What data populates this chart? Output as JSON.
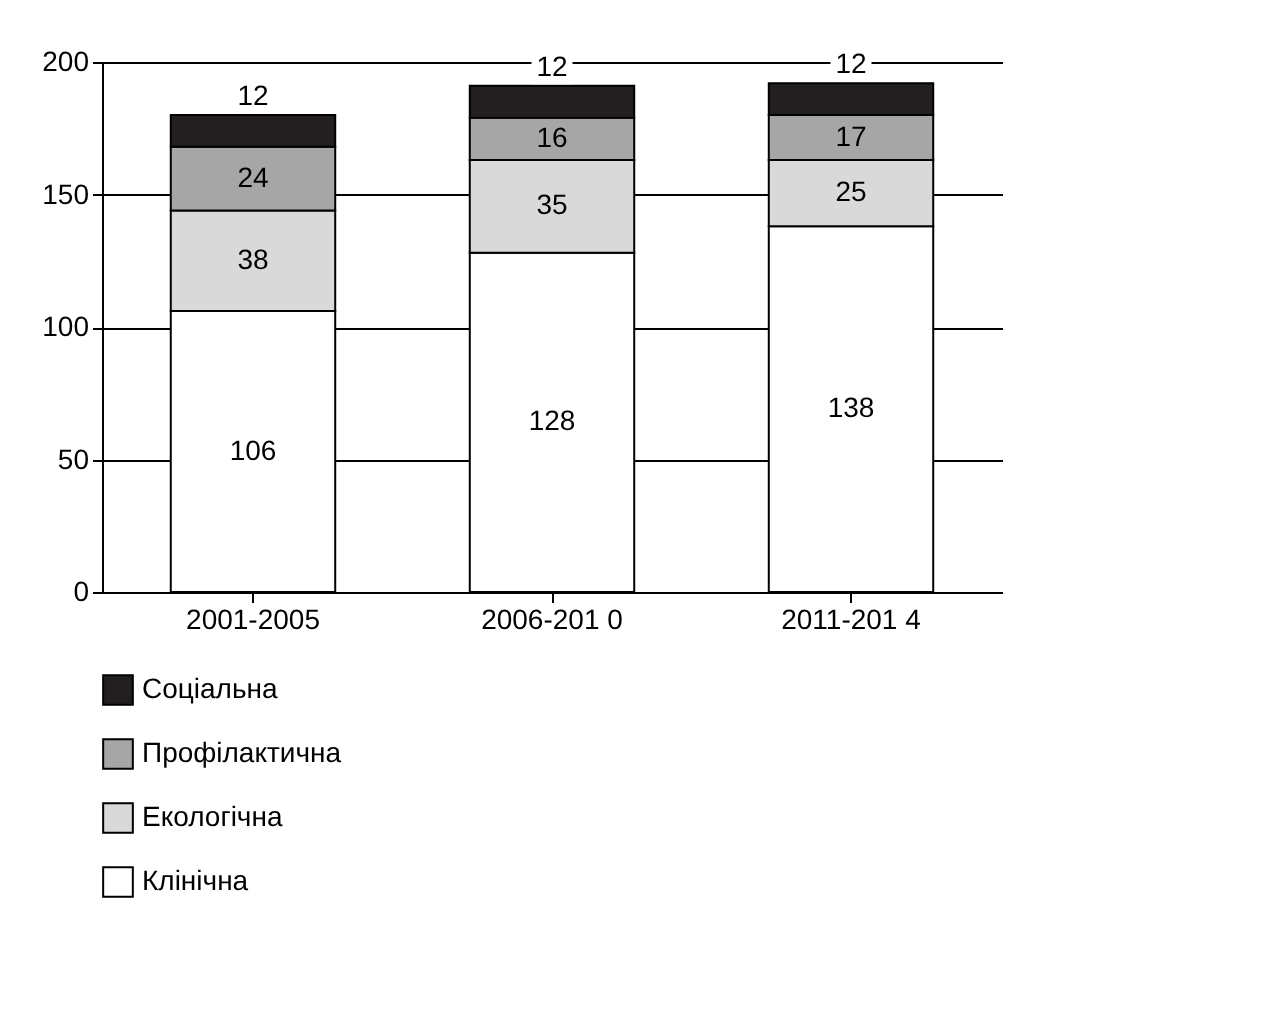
{
  "chart_data": {
    "type": "bar",
    "stacked": true,
    "categories": [
      "2001-2005",
      "2006-201 0",
      "2011-201 4"
    ],
    "series": [
      {
        "name": "Клінічна",
        "color": "#ffffff",
        "values": [
          106,
          128,
          138
        ]
      },
      {
        "name": "Екологічна",
        "color": "#d9d9d9",
        "values": [
          38,
          35,
          25
        ]
      },
      {
        "name": "Профілактична",
        "color": "#a6a6a6",
        "values": [
          24,
          16,
          17
        ]
      },
      {
        "name": "Соціальна",
        "color": "#231f20",
        "values": [
          12,
          12,
          12
        ]
      }
    ],
    "ylim": [
      0,
      200
    ],
    "yticks": [
      0,
      50,
      100,
      150,
      200
    ],
    "grid": "y",
    "legend": "bottom left",
    "data_labels": true
  }
}
